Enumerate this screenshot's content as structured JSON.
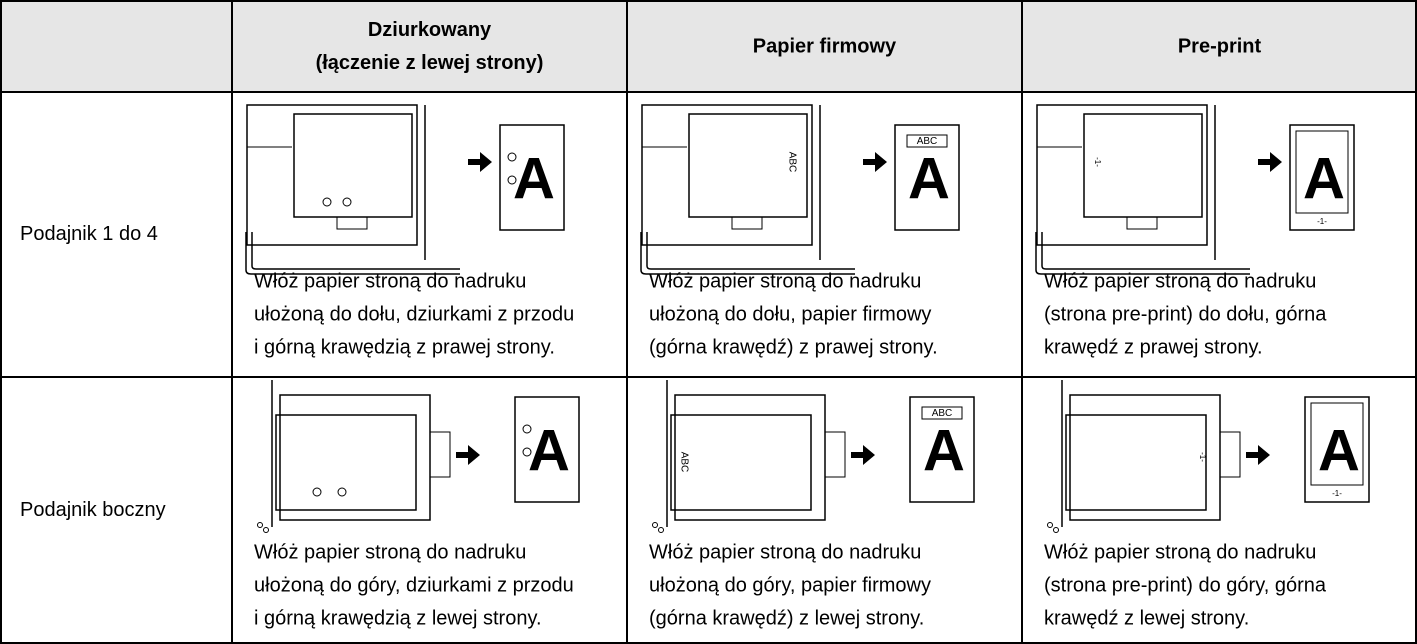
{
  "table": {
    "header": [
      [
        "Dziurkowany",
        "(łączenie z lewej strony)"
      ],
      [
        "Papier firmowy"
      ],
      [
        "Pre-print"
      ]
    ],
    "rows": [
      {
        "label": "Podajnik 1 do 4",
        "cells": [
          [
            "Włóż papier stroną do nadruku",
            "ułożoną do dołu, dziurkami z przodu",
            "i górną krawędzią z prawej strony."
          ],
          [
            "Włóż papier stroną do nadruku",
            "ułożoną do dołu, papier firmowy",
            "(górna krawędź) z prawej strony."
          ],
          [
            "Włóż papier stroną do nadruku",
            "(strona pre-print) do dołu, górna",
            "krawędź z prawej strony."
          ]
        ]
      },
      {
        "label": "Podajnik boczny",
        "cells": [
          [
            "Włóż papier stroną do nadruku",
            "ułożoną do góry, dziurkami z przodu",
            "i górną krawędzią z lewej strony."
          ],
          [
            "Włóż papier stroną do nadruku",
            "ułożoną do góry, papier firmowy",
            "(górna krawędź) z lewej strony."
          ],
          [
            "Włóż papier stroną do nadruku",
            "(strona pre-print) do góry, górna",
            "krawędź z lewej strony."
          ]
        ]
      }
    ],
    "illustration": {
      "letter": "A",
      "letterhead": "ABC",
      "page_number": "-1-"
    }
  }
}
